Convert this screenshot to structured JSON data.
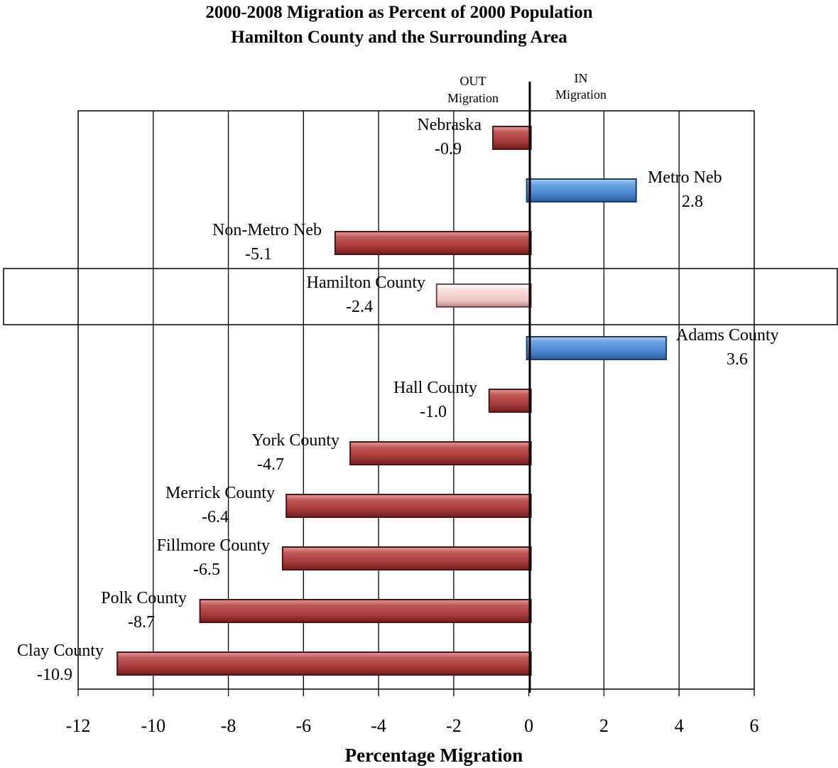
{
  "chart_data": {
    "type": "bar",
    "orientation": "horizontal",
    "title": [
      "2000-2008 Migration as Percent of 2000 Population",
      "Hamilton County and the Surrounding Area"
    ],
    "xlabel": "Percentage Migration",
    "ylabel": "",
    "xlim": [
      -12,
      6
    ],
    "xticks": [
      "-12",
      "-10",
      "-8",
      "-6",
      "-4",
      "-2",
      "0",
      "2",
      "4",
      "6"
    ],
    "grid": "vertical",
    "annotations": {
      "out": [
        "OUT",
        "Migration"
      ],
      "in": [
        "IN",
        "Migration"
      ]
    },
    "highlighted": "Hamilton County",
    "colors": {
      "negative": "#a83a3a",
      "positive": "#4a86d0",
      "highlight": "#f2c8c8"
    },
    "categories": [
      "Nebraska",
      "Metro Neb",
      "Non-Metro Neb",
      "Hamilton County",
      "Adams County",
      "Hall County",
      "York County",
      "Merrick County",
      "Fillmore County",
      "Polk County",
      "Clay County"
    ],
    "values": [
      -0.9,
      2.8,
      -5.1,
      -2.4,
      3.6,
      -1.0,
      -4.7,
      -6.4,
      -6.5,
      -8.7,
      -10.9
    ],
    "value_labels": [
      "-0.9",
      "2.8",
      "-5.1",
      "-2.4",
      "3.6",
      "-1.0",
      "-4.7",
      "-6.4",
      "-6.5",
      "-8.7",
      "-10.9"
    ]
  }
}
